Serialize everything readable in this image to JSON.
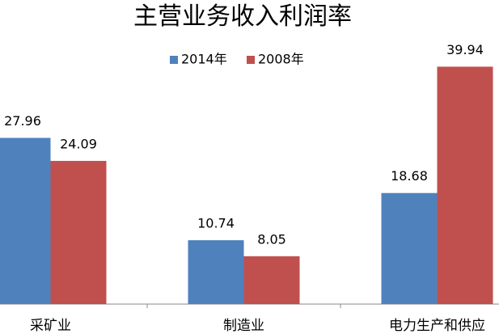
{
  "chart_data": {
    "type": "bar",
    "title": "主营业务收入利润率",
    "categories": [
      "采矿业",
      "制造业",
      "电力生产和供应"
    ],
    "series": [
      {
        "name": "2014年",
        "color": "#4f81bd",
        "values": [
          27.96,
          10.74,
          18.68
        ]
      },
      {
        "name": "2008年",
        "color": "#c0504d",
        "values": [
          24.09,
          8.05,
          39.94
        ]
      }
    ],
    "ylim": [
      0,
      40
    ],
    "legend": "top"
  }
}
